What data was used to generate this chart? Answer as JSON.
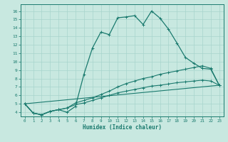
{
  "xlabel": "Humidex (Indice chaleur)",
  "bg_color": "#c8e8e0",
  "line_color": "#1a7a6e",
  "grid_color": "#a8d4cc",
  "xlim": [
    -0.5,
    23.5
  ],
  "ylim": [
    3.5,
    16.8
  ],
  "xticks": [
    0,
    1,
    2,
    3,
    4,
    5,
    6,
    7,
    8,
    9,
    10,
    11,
    12,
    13,
    14,
    15,
    16,
    17,
    18,
    19,
    20,
    21,
    22,
    23
  ],
  "yticks": [
    4,
    5,
    6,
    7,
    8,
    9,
    10,
    11,
    12,
    13,
    14,
    15,
    16
  ],
  "line1_x": [
    0,
    1,
    2,
    3,
    4,
    5,
    6,
    7,
    8,
    9,
    10,
    11,
    12,
    13,
    14,
    15,
    16,
    17,
    18,
    19,
    20,
    21,
    22,
    23
  ],
  "line1_y": [
    5.0,
    3.9,
    3.7,
    4.1,
    4.3,
    4.0,
    4.7,
    8.5,
    11.6,
    13.5,
    13.2,
    15.2,
    15.3,
    15.45,
    14.4,
    16.0,
    15.15,
    13.85,
    12.2,
    10.5,
    9.8,
    9.2,
    9.1,
    7.2
  ],
  "line2_x": [
    0,
    1,
    2,
    3,
    4,
    5,
    6,
    7,
    8,
    9,
    10,
    11,
    12,
    13,
    14,
    15,
    16,
    17,
    18,
    19,
    20,
    21,
    22,
    23
  ],
  "line2_y": [
    5.0,
    3.9,
    3.7,
    4.1,
    4.3,
    4.5,
    5.1,
    5.4,
    5.7,
    6.1,
    6.5,
    7.0,
    7.4,
    7.7,
    8.0,
    8.2,
    8.5,
    8.7,
    8.9,
    9.1,
    9.3,
    9.5,
    9.2,
    7.2
  ],
  "line3_x": [
    0,
    1,
    2,
    3,
    4,
    5,
    6,
    7,
    8,
    9,
    10,
    11,
    12,
    13,
    14,
    15,
    16,
    17,
    18,
    19,
    20,
    21,
    22,
    23
  ],
  "line3_y": [
    5.0,
    3.9,
    3.7,
    4.1,
    4.3,
    4.5,
    4.9,
    5.1,
    5.4,
    5.7,
    6.0,
    6.3,
    6.5,
    6.7,
    6.9,
    7.1,
    7.2,
    7.35,
    7.5,
    7.6,
    7.7,
    7.8,
    7.7,
    7.2
  ],
  "line4_x": [
    0,
    23
  ],
  "line4_y": [
    5.0,
    7.2
  ]
}
